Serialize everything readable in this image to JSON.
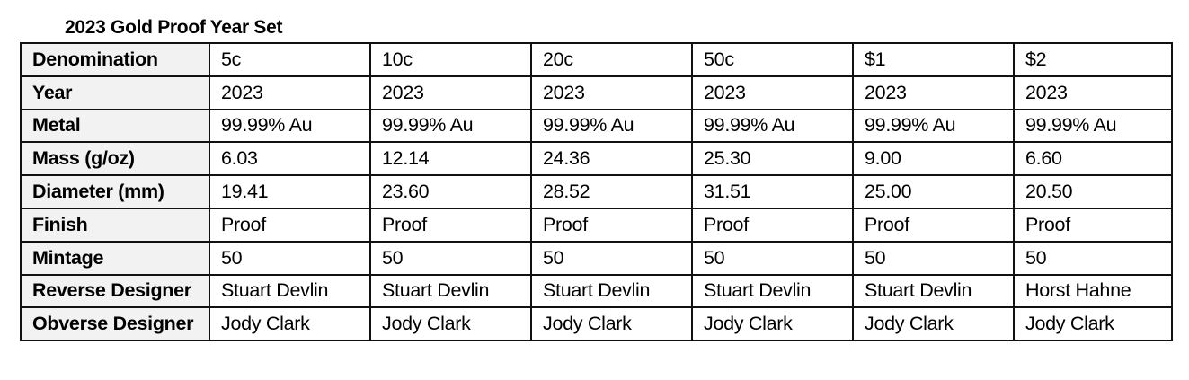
{
  "title": "2023 Gold Proof Year Set",
  "colors": {
    "header_bg": "#f2f2f2",
    "border": "#111111"
  },
  "rows": [
    {
      "label": "Denomination",
      "values": [
        "5c",
        "10c",
        "20c",
        "50c",
        "$1",
        "$2"
      ]
    },
    {
      "label": "Year",
      "values": [
        "2023",
        "2023",
        "2023",
        "2023",
        "2023",
        "2023"
      ]
    },
    {
      "label": "Metal",
      "values": [
        "99.99% Au",
        "99.99% Au",
        "99.99% Au",
        "99.99% Au",
        "99.99% Au",
        "99.99% Au"
      ]
    },
    {
      "label": "Mass (g/oz)",
      "values": [
        "6.03",
        "12.14",
        "24.36",
        "25.30",
        "9.00",
        "6.60"
      ]
    },
    {
      "label": "Diameter (mm)",
      "values": [
        "19.41",
        "23.60",
        "28.52",
        "31.51",
        "25.00",
        "20.50"
      ]
    },
    {
      "label": "Finish",
      "values": [
        "Proof",
        "Proof",
        "Proof",
        "Proof",
        "Proof",
        "Proof"
      ]
    },
    {
      "label": "Mintage",
      "values": [
        "50",
        "50",
        "50",
        "50",
        "50",
        "50"
      ]
    },
    {
      "label": "Reverse Designer",
      "values": [
        "Stuart Devlin",
        "Stuart Devlin",
        "Stuart Devlin",
        "Stuart Devlin",
        "Stuart Devlin",
        "Horst Hahne"
      ]
    },
    {
      "label": "Obverse Designer",
      "values": [
        "Jody Clark",
        "Jody Clark",
        "Jody Clark",
        "Jody Clark",
        "Jody Clark",
        "Jody Clark"
      ]
    }
  ]
}
